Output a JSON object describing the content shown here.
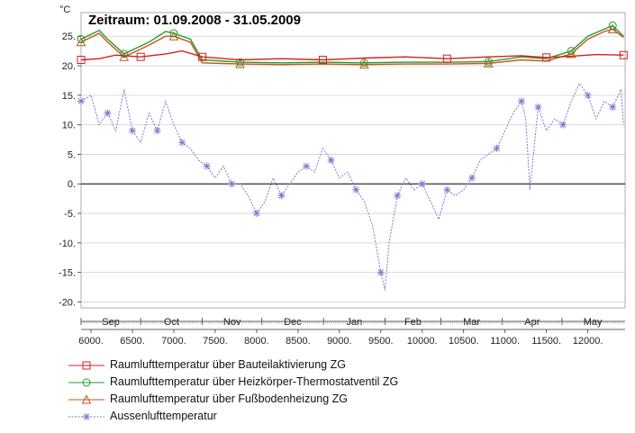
{
  "chart_data": {
    "type": "line",
    "title": "Zeitraum: 01.09.2008 - 31.05.2009",
    "ylabel": "°C",
    "ylim": [
      -21,
      29
    ],
    "yticks": [
      25,
      20,
      15,
      10,
      5,
      0,
      -5,
      -10,
      -15,
      -20
    ],
    "ytick_labels": [
      "25.",
      "20.",
      "15.",
      "10.",
      "5.",
      "0.",
      "-5.",
      "-10.",
      "-15.",
      "-20."
    ],
    "xlim": [
      5880,
      12450
    ],
    "xticks": [
      6000,
      6500,
      7000,
      7500,
      8000,
      8500,
      9000,
      9500,
      10000,
      10500,
      11000,
      11500,
      12000
    ],
    "xtick_labels": [
      "6000.",
      "6500.",
      "7000.",
      "7500.",
      "8000.",
      "8500.",
      "9000.",
      "9500.",
      "10000.",
      "10500.",
      "11000.",
      "11500.",
      "12000."
    ],
    "months": [
      {
        "label": "Sep",
        "start": 5880,
        "end": 6600
      },
      {
        "label": "Oct",
        "start": 6600,
        "end": 7344
      },
      {
        "label": "Nov",
        "start": 7344,
        "end": 8064
      },
      {
        "label": "Dec",
        "start": 8064,
        "end": 8808
      },
      {
        "label": "Jan",
        "start": 8808,
        "end": 9552
      },
      {
        "label": "Feb",
        "start": 9552,
        "end": 10224
      },
      {
        "label": "Mar",
        "start": 10224,
        "end": 10968
      },
      {
        "label": "Apr",
        "start": 10968,
        "end": 11688
      },
      {
        "label": "May",
        "start": 11688,
        "end": 12432
      }
    ],
    "series": [
      {
        "name": "Raumlufttemperatur über Bauteilaktivierung ZG",
        "color": "#d42020",
        "marker": "square",
        "x": [
          5880,
          6100,
          6300,
          6600,
          6900,
          7100,
          7344,
          7800,
          8300,
          8800,
          9300,
          9800,
          10300,
          10800,
          11200,
          11500,
          11800,
          12100,
          12432
        ],
        "y": [
          21.0,
          21.2,
          21.8,
          21.5,
          22.0,
          22.5,
          21.5,
          21.0,
          21.2,
          21.0,
          21.3,
          21.5,
          21.2,
          21.5,
          21.7,
          21.4,
          21.6,
          21.9,
          21.8
        ]
      },
      {
        "name": "Raumlufttemperatur über Heizkörper-Thermostatventil ZG",
        "color": "#2a9a2a",
        "marker": "circle",
        "x": [
          5880,
          6100,
          6200,
          6400,
          6700,
          6900,
          7000,
          7200,
          7344,
          7800,
          8300,
          8800,
          9300,
          9800,
          10300,
          10800,
          11200,
          11500,
          11800,
          12000,
          12200,
          12300,
          12432
        ],
        "y": [
          24.5,
          26.0,
          24.5,
          22.0,
          24.0,
          25.8,
          25.5,
          24.5,
          21.0,
          20.6,
          20.5,
          20.6,
          20.5,
          20.6,
          20.6,
          20.7,
          21.5,
          21.2,
          22.5,
          25.0,
          26.2,
          26.8,
          25.0
        ]
      },
      {
        "name": "Raumlufttemperatur über Fußbodenheizung ZG",
        "color": "#c0561e",
        "marker": "triangle",
        "x": [
          5880,
          6100,
          6200,
          6400,
          6700,
          6900,
          7000,
          7200,
          7344,
          7800,
          8300,
          8800,
          9300,
          9800,
          10300,
          10800,
          11200,
          11500,
          11800,
          12000,
          12200,
          12300,
          12432
        ],
        "y": [
          24.0,
          25.5,
          24.0,
          21.5,
          23.5,
          25.0,
          25.0,
          24.0,
          20.5,
          20.3,
          20.2,
          20.3,
          20.2,
          20.3,
          20.3,
          20.4,
          21.0,
          20.8,
          22.0,
          24.5,
          25.8,
          26.2,
          24.8
        ]
      },
      {
        "name": "Aussenlufttemperatur",
        "color": "#7a7ad0",
        "marker": "asterisk",
        "x": [
          5880,
          6000,
          6100,
          6200,
          6300,
          6400,
          6500,
          6600,
          6700,
          6800,
          6900,
          7000,
          7100,
          7200,
          7300,
          7400,
          7500,
          7600,
          7700,
          7800,
          7900,
          8000,
          8100,
          8200,
          8300,
          8400,
          8500,
          8600,
          8700,
          8800,
          8900,
          9000,
          9100,
          9200,
          9300,
          9400,
          9500,
          9550,
          9600,
          9700,
          9800,
          9900,
          10000,
          10100,
          10200,
          10300,
          10400,
          10500,
          10600,
          10700,
          10800,
          10900,
          11000,
          11100,
          11200,
          11250,
          11300,
          11400,
          11500,
          11600,
          11700,
          11800,
          11900,
          12000,
          12100,
          12200,
          12300,
          12400,
          12432
        ],
        "y": [
          14,
          15,
          10,
          12,
          9,
          16,
          9,
          7,
          12,
          9,
          14,
          10,
          7,
          6,
          4,
          3,
          1,
          3,
          0,
          0,
          -2,
          -5,
          -3,
          1,
          -2,
          0,
          2,
          3,
          2,
          6,
          4,
          1,
          2,
          -1,
          -3,
          -7,
          -15,
          -18,
          -10,
          -2,
          1,
          -1,
          0,
          -3,
          -6,
          -1,
          -2,
          -1,
          1,
          4,
          5,
          6,
          9,
          12,
          14,
          11,
          -1,
          13,
          9,
          11,
          10,
          14,
          17,
          15,
          11,
          14,
          13,
          16,
          10
        ]
      }
    ],
    "legend": [
      "Raumlufttemperatur über Bauteilaktivierung ZG",
      "Raumlufttemperatur über Heizkörper-Thermostatventil ZG",
      "Raumlufttemperatur über Fußbodenheizung ZG",
      "Aussenlufttemperatur"
    ],
    "legend_position": "bottom",
    "grid": true
  }
}
